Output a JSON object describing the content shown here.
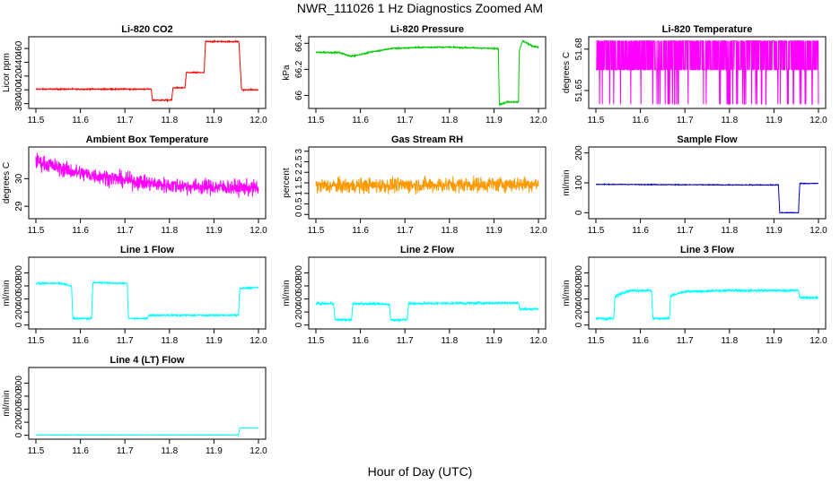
{
  "page": {
    "title": "NWR_111026  1 Hz Diagnostics Zoomed AM",
    "xlabel": "Hour of Day (UTC)"
  },
  "chart_data": [
    {
      "type": "line",
      "title": "Li-820 CO2",
      "xlabel": "",
      "ylabel": "Licor ppm",
      "color": "#ff0000",
      "xlim": [
        11.5,
        12.0
      ],
      "ylim": [
        373,
        477
      ],
      "xticks": [
        11.5,
        11.6,
        11.7,
        11.8,
        11.9,
        12.0
      ],
      "yticks": [
        380,
        400,
        420,
        440,
        460
      ],
      "noise": 0.8,
      "x": [
        11.5,
        11.759,
        11.762,
        11.805,
        11.808,
        11.835,
        11.838,
        11.878,
        11.881,
        11.956,
        11.962,
        12.0
      ],
      "y": [
        401,
        401,
        385,
        385,
        403,
        403,
        425,
        425,
        470,
        470,
        400,
        400
      ]
    },
    {
      "type": "line",
      "title": "Li-820 Pressure",
      "xlabel": "",
      "ylabel": "kPa",
      "color": "#00cc00",
      "xlim": [
        11.5,
        12.0
      ],
      "ylim": [
        65.9,
        66.45
      ],
      "xticks": [
        11.5,
        11.6,
        11.7,
        11.8,
        11.9,
        12.0
      ],
      "yticks": [
        66.0,
        66.2,
        66.4
      ],
      "noise": 0.005,
      "x": [
        11.5,
        11.55,
        11.58,
        11.62,
        11.67,
        11.75,
        11.8,
        11.9,
        11.91,
        11.912,
        11.93,
        11.955,
        11.957,
        11.965,
        11.985,
        12.0
      ],
      "y": [
        66.33,
        66.33,
        66.3,
        66.33,
        66.36,
        66.37,
        66.37,
        66.36,
        66.36,
        65.93,
        65.95,
        65.95,
        66.35,
        66.42,
        66.38,
        66.37
      ]
    },
    {
      "type": "line",
      "title": "Li-820 Temperature",
      "xlabel": "",
      "ylabel": "degrees C",
      "color": "#ff00ff",
      "xlim": [
        11.5,
        12.0
      ],
      "ylim": [
        51.637,
        51.689
      ],
      "xticks": [
        11.5,
        11.6,
        11.7,
        11.8,
        11.9,
        12.0
      ],
      "yticks": [
        51.65,
        51.68
      ],
      "y_low": 51.665,
      "y_high": 51.686,
      "y_spike": 51.64
    },
    {
      "type": "line",
      "title": "Ambient Box Temperature",
      "xlabel": "",
      "ylabel": "degrees C",
      "color": "#ff00ff",
      "xlim": [
        11.5,
        12.0
      ],
      "ylim": [
        28.55,
        31.15
      ],
      "xticks": [
        11.5,
        11.6,
        11.7,
        11.8,
        11.9,
        12.0
      ],
      "yticks": [
        29.0,
        30.0
      ],
      "noise": 0.28,
      "x": [
        11.5,
        11.55,
        11.6,
        11.7,
        11.8,
        12.0
      ],
      "y": [
        30.65,
        30.4,
        30.2,
        29.95,
        29.75,
        29.65
      ]
    },
    {
      "type": "line",
      "title": "Gas Stream RH",
      "xlabel": "",
      "ylabel": "percent",
      "color": "#ff9900",
      "xlim": [
        11.5,
        12.0
      ],
      "ylim": [
        -0.2,
        3.2
      ],
      "xticks": [
        11.5,
        11.6,
        11.7,
        11.8,
        11.9,
        12.0
      ],
      "yticks": [
        0.0,
        0.5,
        1.0,
        1.5,
        2.0,
        2.5,
        3.0
      ],
      "noise": 0.35,
      "x": [
        11.5,
        12.0
      ],
      "y": [
        1.35,
        1.45
      ]
    },
    {
      "type": "line",
      "title": "Sample Flow",
      "xlabel": "",
      "ylabel": "ml/min",
      "color": "#0000cc",
      "xlim": [
        11.5,
        12.0
      ],
      "ylim": [
        -20,
        220
      ],
      "xticks": [
        11.5,
        11.6,
        11.7,
        11.8,
        11.9,
        12.0
      ],
      "yticks": [
        0,
        100,
        200
      ],
      "noise": 1.2,
      "x": [
        11.5,
        11.8,
        11.91,
        11.913,
        11.955,
        11.958,
        12.0
      ],
      "y": [
        95,
        93,
        93,
        0,
        0,
        98,
        98
      ]
    },
    {
      "type": "line",
      "title": "Line 1 Flow",
      "xlabel": "",
      "ylabel": "ml/min",
      "color": "#00ffff",
      "xlim": [
        11.5,
        12.0
      ],
      "ylim": [
        -60,
        1040
      ],
      "xticks": [
        11.5,
        11.6,
        11.7,
        11.8,
        11.9,
        12.0
      ],
      "yticks": [
        0,
        200,
        400,
        600,
        800
      ],
      "noise": 12,
      "x": [
        11.5,
        11.555,
        11.58,
        11.583,
        11.625,
        11.628,
        11.705,
        11.708,
        11.75,
        11.753,
        11.955,
        11.958,
        12.0
      ],
      "y": [
        640,
        640,
        600,
        100,
        100,
        650,
        640,
        100,
        100,
        150,
        150,
        560,
        580
      ]
    },
    {
      "type": "line",
      "title": "Line 2 Flow",
      "xlabel": "",
      "ylabel": "ml/min",
      "color": "#00ffff",
      "xlim": [
        11.5,
        12.0
      ],
      "ylim": [
        -60,
        1040
      ],
      "xticks": [
        11.5,
        11.6,
        11.7,
        11.8,
        11.9,
        12.0
      ],
      "yticks": [
        0,
        200,
        400,
        600,
        800
      ],
      "noise": 18,
      "x": [
        11.5,
        11.54,
        11.543,
        11.58,
        11.583,
        11.665,
        11.668,
        11.705,
        11.708,
        11.955,
        11.958,
        12.0
      ],
      "y": [
        330,
        330,
        80,
        80,
        330,
        320,
        80,
        80,
        330,
        340,
        240,
        250
      ]
    },
    {
      "type": "line",
      "title": "Line 3 Flow",
      "xlabel": "",
      "ylabel": "ml/min",
      "color": "#00ffff",
      "xlim": [
        11.5,
        12.0
      ],
      "ylim": [
        -60,
        1040
      ],
      "xticks": [
        11.5,
        11.6,
        11.7,
        11.8,
        11.9,
        12.0
      ],
      "yticks": [
        0,
        200,
        400,
        600,
        800
      ],
      "noise": 18,
      "x": [
        11.5,
        11.54,
        11.543,
        11.56,
        11.58,
        11.625,
        11.628,
        11.665,
        11.668,
        11.7,
        11.8,
        11.955,
        11.958,
        12.0
      ],
      "y": [
        100,
        100,
        430,
        500,
        530,
        530,
        100,
        100,
        450,
        510,
        530,
        530,
        420,
        420
      ]
    },
    {
      "type": "line",
      "title": "Line 4 (LT) Flow",
      "xlabel": "",
      "ylabel": "ml/min",
      "color": "#00ffff",
      "xlim": [
        11.5,
        12.0
      ],
      "ylim": [
        -60,
        1040
      ],
      "xticks": [
        11.5,
        11.6,
        11.7,
        11.8,
        11.9,
        12.0
      ],
      "yticks": [
        0,
        200,
        400,
        600,
        800
      ],
      "noise": 3,
      "x": [
        11.5,
        11.955,
        11.958,
        12.0
      ],
      "y": [
        5,
        5,
        110,
        110
      ]
    }
  ]
}
